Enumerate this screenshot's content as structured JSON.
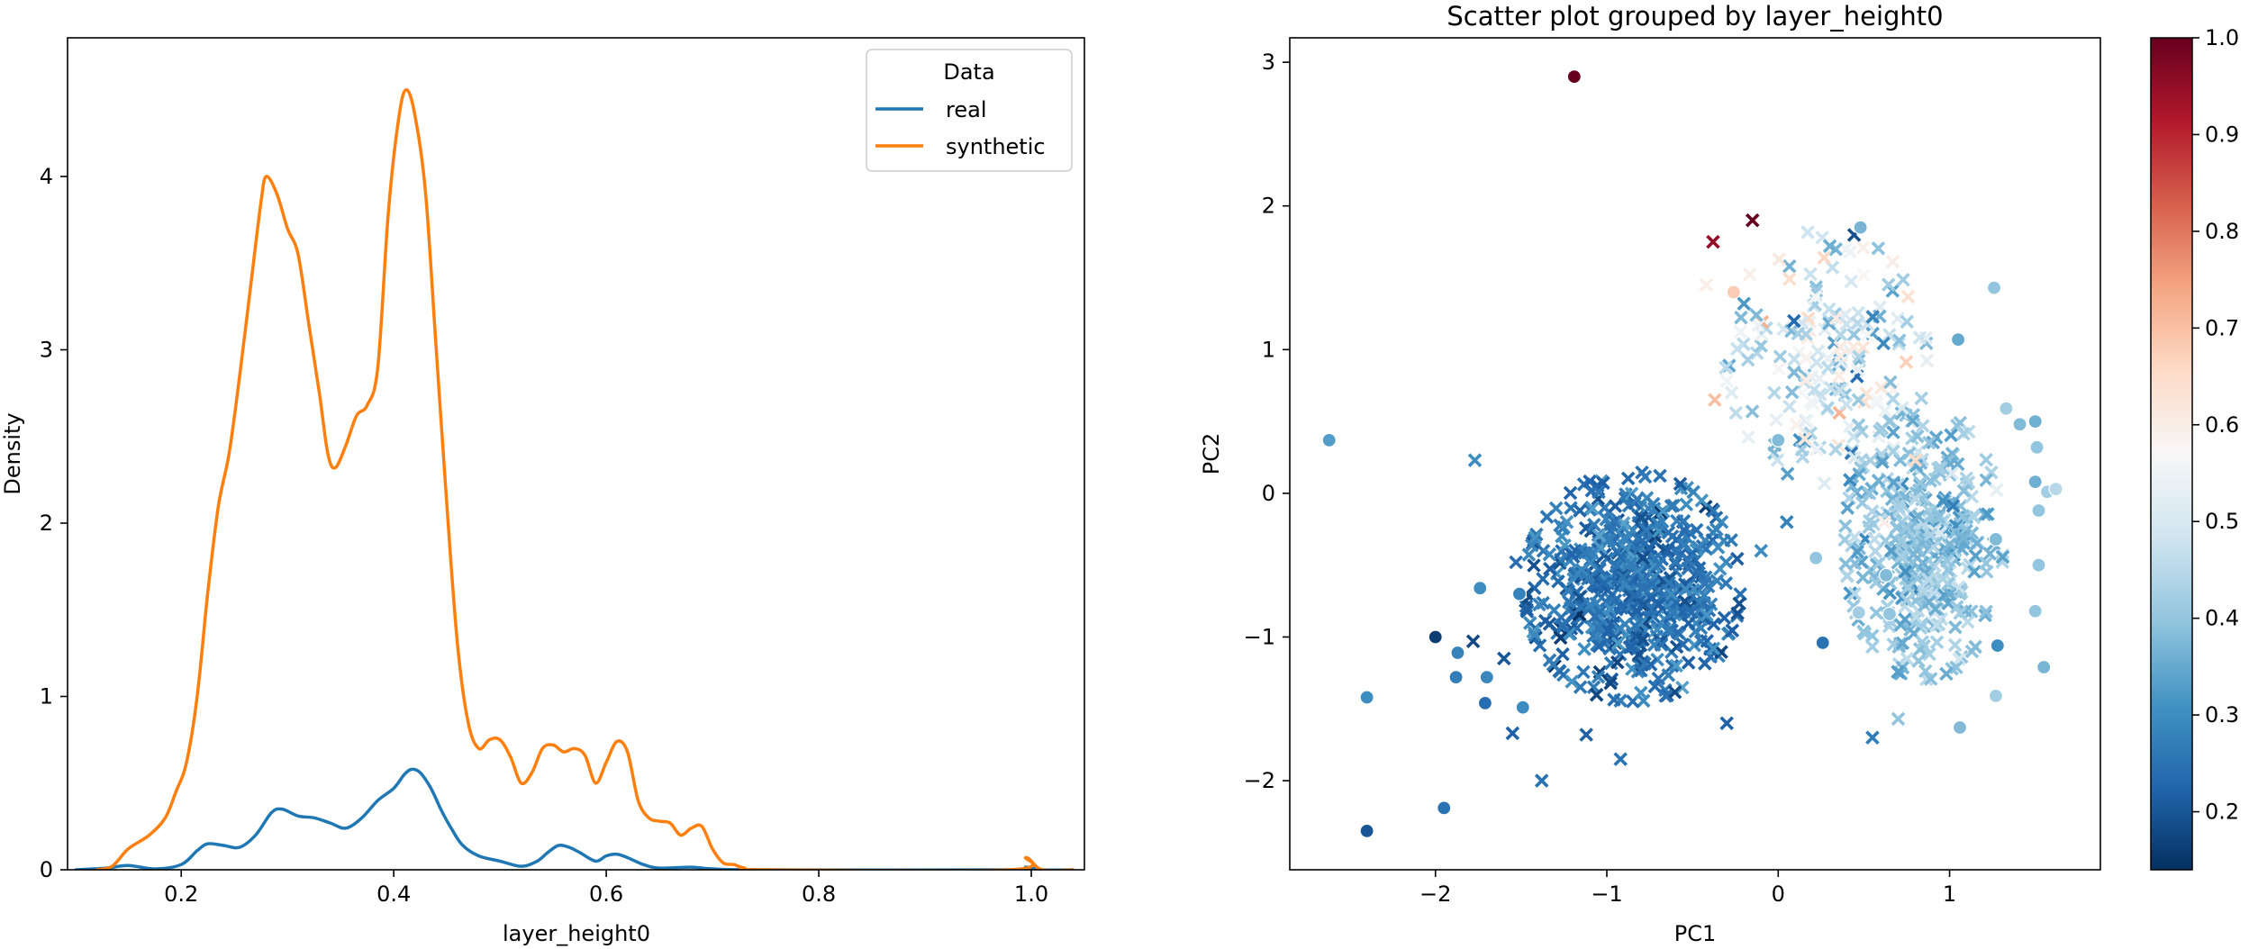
{
  "chart_data": [
    {
      "type": "line",
      "title": "",
      "xlabel": "layer_height0",
      "ylabel": "Density",
      "xlim": [
        0.093,
        1.05
      ],
      "ylim": [
        0,
        4.8
      ],
      "xticks": [
        "0.2",
        "0.4",
        "0.6",
        "0.8",
        "1.0"
      ],
      "xtick_values": [
        0.2,
        0.4,
        0.6,
        0.8,
        1.0
      ],
      "yticks": [
        "0",
        "1",
        "2",
        "3",
        "4"
      ],
      "ytick_values": [
        0,
        1,
        2,
        3,
        4
      ],
      "grid": false,
      "legend": {
        "title": "Data",
        "placement": "top-right"
      },
      "series": [
        {
          "name": "real",
          "color": "#1f77b4",
          "points": [
            [
              0.1,
              0
            ],
            [
              0.13,
              0.01
            ],
            [
              0.15,
              0.025
            ],
            [
              0.175,
              0.005
            ],
            [
              0.2,
              0.03
            ],
            [
              0.215,
              0.11
            ],
            [
              0.225,
              0.15
            ],
            [
              0.24,
              0.14
            ],
            [
              0.255,
              0.13
            ],
            [
              0.27,
              0.2
            ],
            [
              0.285,
              0.33
            ],
            [
              0.295,
              0.35
            ],
            [
              0.31,
              0.31
            ],
            [
              0.325,
              0.3
            ],
            [
              0.34,
              0.27
            ],
            [
              0.355,
              0.24
            ],
            [
              0.37,
              0.3
            ],
            [
              0.385,
              0.4
            ],
            [
              0.4,
              0.47
            ],
            [
              0.41,
              0.55
            ],
            [
              0.417,
              0.58
            ],
            [
              0.425,
              0.56
            ],
            [
              0.435,
              0.47
            ],
            [
              0.445,
              0.34
            ],
            [
              0.455,
              0.23
            ],
            [
              0.465,
              0.14
            ],
            [
              0.48,
              0.08
            ],
            [
              0.5,
              0.05
            ],
            [
              0.52,
              0.02
            ],
            [
              0.535,
              0.05
            ],
            [
              0.545,
              0.1
            ],
            [
              0.555,
              0.14
            ],
            [
              0.565,
              0.13
            ],
            [
              0.575,
              0.1
            ],
            [
              0.59,
              0.05
            ],
            [
              0.6,
              0.08
            ],
            [
              0.61,
              0.09
            ],
            [
              0.62,
              0.07
            ],
            [
              0.635,
              0.03
            ],
            [
              0.65,
              0.01
            ],
            [
              0.68,
              0.015
            ],
            [
              0.7,
              0.005
            ],
            [
              0.75,
              0
            ],
            [
              0.98,
              0
            ],
            [
              0.995,
              0.015
            ],
            [
              1.01,
              0
            ],
            [
              1.04,
              0
            ]
          ]
        },
        {
          "name": "synthetic",
          "color": "#ff7f0e",
          "points": [
            [
              0.12,
              0
            ],
            [
              0.135,
              0.02
            ],
            [
              0.15,
              0.12
            ],
            [
              0.17,
              0.2
            ],
            [
              0.185,
              0.3
            ],
            [
              0.195,
              0.45
            ],
            [
              0.205,
              0.62
            ],
            [
              0.215,
              1.0
            ],
            [
              0.225,
              1.6
            ],
            [
              0.235,
              2.1
            ],
            [
              0.245,
              2.4
            ],
            [
              0.255,
              2.85
            ],
            [
              0.265,
              3.35
            ],
            [
              0.275,
              3.85
            ],
            [
              0.28,
              4.0
            ],
            [
              0.29,
              3.9
            ],
            [
              0.3,
              3.7
            ],
            [
              0.31,
              3.55
            ],
            [
              0.32,
              3.15
            ],
            [
              0.33,
              2.75
            ],
            [
              0.338,
              2.4
            ],
            [
              0.345,
              2.32
            ],
            [
              0.355,
              2.45
            ],
            [
              0.365,
              2.62
            ],
            [
              0.375,
              2.68
            ],
            [
              0.385,
              2.9
            ],
            [
              0.395,
              3.8
            ],
            [
              0.405,
              4.35
            ],
            [
              0.412,
              4.5
            ],
            [
              0.42,
              4.35
            ],
            [
              0.43,
              3.9
            ],
            [
              0.44,
              3.0
            ],
            [
              0.45,
              2.1
            ],
            [
              0.46,
              1.3
            ],
            [
              0.47,
              0.85
            ],
            [
              0.48,
              0.7
            ],
            [
              0.49,
              0.75
            ],
            [
              0.5,
              0.75
            ],
            [
              0.51,
              0.65
            ],
            [
              0.52,
              0.5
            ],
            [
              0.53,
              0.56
            ],
            [
              0.54,
              0.7
            ],
            [
              0.55,
              0.72
            ],
            [
              0.56,
              0.68
            ],
            [
              0.57,
              0.7
            ],
            [
              0.58,
              0.66
            ],
            [
              0.59,
              0.5
            ],
            [
              0.6,
              0.62
            ],
            [
              0.61,
              0.74
            ],
            [
              0.62,
              0.68
            ],
            [
              0.63,
              0.4
            ],
            [
              0.64,
              0.3
            ],
            [
              0.65,
              0.28
            ],
            [
              0.66,
              0.27
            ],
            [
              0.67,
              0.2
            ],
            [
              0.68,
              0.24
            ],
            [
              0.69,
              0.25
            ],
            [
              0.7,
              0.12
            ],
            [
              0.71,
              0.04
            ],
            [
              0.72,
              0.03
            ],
            [
              0.73,
              0.01
            ],
            [
              0.75,
              0
            ],
            [
              0.98,
              0
            ],
            [
              0.995,
              0.07
            ],
            [
              1.01,
              0
            ],
            [
              1.04,
              0
            ]
          ]
        }
      ]
    },
    {
      "type": "scatter",
      "title": "Scatter plot grouped by layer_height0",
      "xlabel": "PC1",
      "ylabel": "PC2",
      "xlim": [
        -2.85,
        1.88
      ],
      "ylim": [
        -2.62,
        3.17
      ],
      "xticks": [
        "−2",
        "−1",
        "0",
        "1"
      ],
      "xtick_values": [
        -2,
        -1,
        0,
        1
      ],
      "yticks": [
        "−2",
        "−1",
        "0",
        "1",
        "2",
        "3"
      ],
      "ytick_values": [
        -2,
        -1,
        0,
        1,
        2,
        3
      ],
      "grid": false,
      "colormap": "RdBu_r",
      "colorbar": {
        "range": [
          0.14,
          1.0
        ],
        "ticks": [
          "0.2",
          "0.3",
          "0.4",
          "0.5",
          "0.6",
          "0.7",
          "0.8",
          "0.9",
          "1.0"
        ],
        "tick_values": [
          0.2,
          0.3,
          0.4,
          0.5,
          0.6,
          0.7,
          0.8,
          0.9,
          1.0
        ]
      },
      "marker_styles": {
        "real": "circle",
        "synthetic": "x"
      },
      "clusters": [
        {
          "marker": "x",
          "count": 560,
          "cx": -0.85,
          "cy": -0.65,
          "sx": 0.3,
          "sy": 0.38,
          "value_mean": 0.25,
          "value_sd": 0.035
        },
        {
          "marker": "x",
          "count": 380,
          "cx": 0.85,
          "cy": -0.35,
          "sx": 0.22,
          "sy": 0.45,
          "value_mean": 0.4,
          "value_sd": 0.04
        },
        {
          "marker": "x",
          "count": 180,
          "cx": 0.28,
          "cy": 0.95,
          "sx": 0.28,
          "sy": 0.42,
          "value_mean": 0.48,
          "value_sd": 0.1
        }
      ],
      "points": [
        {
          "x": -1.19,
          "y": 2.9,
          "v": 1.0,
          "m": "o"
        },
        {
          "x": -0.26,
          "y": 1.4,
          "v": 0.68,
          "m": "o"
        },
        {
          "x": -2.62,
          "y": 0.37,
          "v": 0.33,
          "m": "o"
        },
        {
          "x": -2.0,
          "y": -1.0,
          "v": 0.16,
          "m": "o"
        },
        {
          "x": -2.4,
          "y": -1.42,
          "v": 0.3,
          "m": "o"
        },
        {
          "x": -2.4,
          "y": -2.35,
          "v": 0.2,
          "m": "o"
        },
        {
          "x": -1.95,
          "y": -2.19,
          "v": 0.25,
          "m": "o"
        },
        {
          "x": -1.88,
          "y": -1.28,
          "v": 0.27,
          "m": "o"
        },
        {
          "x": -1.87,
          "y": -1.11,
          "v": 0.28,
          "m": "o"
        },
        {
          "x": -1.71,
          "y": -1.46,
          "v": 0.24,
          "m": "o"
        },
        {
          "x": -1.7,
          "y": -1.28,
          "v": 0.29,
          "m": "o"
        },
        {
          "x": -1.49,
          "y": -1.49,
          "v": 0.3,
          "m": "o"
        },
        {
          "x": -1.74,
          "y": -0.66,
          "v": 0.3,
          "m": "o"
        },
        {
          "x": -1.51,
          "y": -0.7,
          "v": 0.28,
          "m": "o"
        },
        {
          "x": 0.48,
          "y": 1.85,
          "v": 0.37,
          "m": "o"
        },
        {
          "x": 0.0,
          "y": 0.37,
          "v": 0.38,
          "m": "o"
        },
        {
          "x": 0.26,
          "y": -1.04,
          "v": 0.25,
          "m": "o"
        },
        {
          "x": 1.26,
          "y": 1.43,
          "v": 0.4,
          "m": "o"
        },
        {
          "x": 1.05,
          "y": 1.07,
          "v": 0.35,
          "m": "o"
        },
        {
          "x": 1.33,
          "y": 0.59,
          "v": 0.42,
          "m": "o"
        },
        {
          "x": 1.41,
          "y": 0.48,
          "v": 0.38,
          "m": "o"
        },
        {
          "x": 1.5,
          "y": 0.5,
          "v": 0.36,
          "m": "o"
        },
        {
          "x": 1.51,
          "y": 0.32,
          "v": 0.4,
          "m": "o"
        },
        {
          "x": 1.57,
          "y": 0.01,
          "v": 0.42,
          "m": "o"
        },
        {
          "x": 1.62,
          "y": 0.03,
          "v": 0.45,
          "m": "o"
        },
        {
          "x": 1.5,
          "y": 0.08,
          "v": 0.36,
          "m": "o"
        },
        {
          "x": 1.52,
          "y": -0.12,
          "v": 0.4,
          "m": "o"
        },
        {
          "x": 1.27,
          "y": -0.32,
          "v": 0.38,
          "m": "o"
        },
        {
          "x": 1.52,
          "y": -0.5,
          "v": 0.4,
          "m": "o"
        },
        {
          "x": 1.28,
          "y": -1.06,
          "v": 0.3,
          "m": "o"
        },
        {
          "x": 1.55,
          "y": -1.21,
          "v": 0.37,
          "m": "o"
        },
        {
          "x": 1.27,
          "y": -1.41,
          "v": 0.42,
          "m": "o"
        },
        {
          "x": 1.06,
          "y": -1.63,
          "v": 0.38,
          "m": "o"
        },
        {
          "x": 1.5,
          "y": -0.82,
          "v": 0.4,
          "m": "o"
        },
        {
          "x": 0.22,
          "y": -0.45,
          "v": 0.4,
          "m": "o"
        },
        {
          "x": 0.47,
          "y": -0.83,
          "v": 0.42,
          "m": "o"
        },
        {
          "x": 0.63,
          "y": -0.57,
          "v": 0.38,
          "m": "o"
        },
        {
          "x": 0.65,
          "y": -0.84,
          "v": 0.4,
          "m": "o"
        },
        {
          "x": -0.15,
          "y": 1.9,
          "v": 1.0,
          "m": "x"
        },
        {
          "x": -0.38,
          "y": 1.75,
          "v": 0.95,
          "m": "x"
        },
        {
          "x": -0.42,
          "y": 1.45,
          "v": 0.6,
          "m": "x"
        },
        {
          "x": -0.37,
          "y": 0.65,
          "v": 0.7,
          "m": "x"
        },
        {
          "x": -0.3,
          "y": 0.78,
          "v": 0.55,
          "m": "x"
        },
        {
          "x": -0.2,
          "y": 1.32,
          "v": 0.32,
          "m": "x"
        },
        {
          "x": -1.12,
          "y": -1.68,
          "v": 0.22,
          "m": "x"
        },
        {
          "x": -1.38,
          "y": -2.0,
          "v": 0.25,
          "m": "x"
        },
        {
          "x": -1.55,
          "y": -1.67,
          "v": 0.22,
          "m": "x"
        },
        {
          "x": -1.78,
          "y": -1.03,
          "v": 0.18,
          "m": "x"
        },
        {
          "x": -1.6,
          "y": -1.15,
          "v": 0.2,
          "m": "x"
        },
        {
          "x": -1.77,
          "y": 0.23,
          "v": 0.3,
          "m": "x"
        },
        {
          "x": -1.53,
          "y": -0.48,
          "v": 0.24,
          "m": "x"
        },
        {
          "x": -0.92,
          "y": -1.85,
          "v": 0.25,
          "m": "x"
        },
        {
          "x": -0.3,
          "y": -1.6,
          "v": 0.22,
          "m": "x"
        },
        {
          "x": -0.1,
          "y": -0.4,
          "v": 0.3,
          "m": "x"
        },
        {
          "x": 0.05,
          "y": -0.2,
          "v": 0.28,
          "m": "x"
        },
        {
          "x": 0.55,
          "y": -1.7,
          "v": 0.27,
          "m": "x"
        },
        {
          "x": 0.7,
          "y": -1.57,
          "v": 0.4,
          "m": "x"
        },
        {
          "x": 0.62,
          "y": -0.2,
          "v": 0.6,
          "m": "x"
        },
        {
          "x": 0.8,
          "y": 0.23,
          "v": 0.65,
          "m": "x"
        },
        {
          "x": 0.42,
          "y": 1.68,
          "v": 0.55,
          "m": "x"
        }
      ]
    }
  ]
}
